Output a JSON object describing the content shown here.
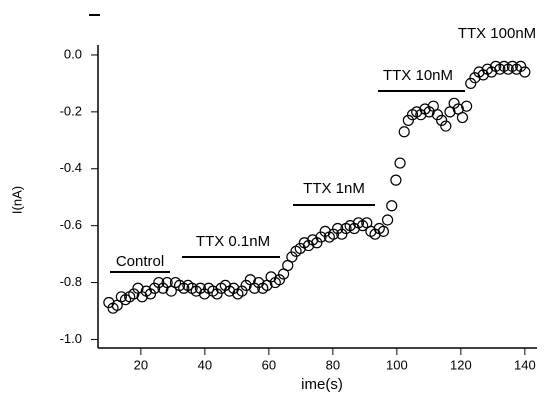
{
  "chart_data": {
    "type": "scatter",
    "xlabel": "ime(s)",
    "ylabel": "I(nA)",
    "annotations": [
      "Control",
      "TTX 0.1nM",
      "TTX 1nM",
      "TTX 10nM",
      "TTX 100nM"
    ],
    "color": "#000000",
    "xlim": [
      6.6,
      143.8
    ],
    "ylim": [
      -1.03,
      0.035
    ],
    "xticks": [
      20,
      40,
      60,
      80,
      100,
      120,
      140
    ],
    "yticks": [
      {
        "value": 0,
        "label": "0.0"
      },
      -0.2,
      -0.4,
      -0.6,
      -0.8,
      {
        "value": -1,
        "label": "-1.0"
      }
    ],
    "x": [
      10,
      11.3,
      12.6,
      13.9,
      15.2,
      16.5,
      17.8,
      19.1,
      20.4,
      21.7,
      23,
      24.3,
      25.6,
      26.9,
      28.2,
      29.5,
      30.8,
      32.1,
      33.4,
      34.7,
      36,
      37.3,
      38.6,
      39.9,
      41.2,
      42.5,
      43.8,
      45.1,
      46.4,
      47.7,
      49,
      50.3,
      51.6,
      52.9,
      54.2,
      55.5,
      56.8,
      58.1,
      59.4,
      60.7,
      62,
      63.3,
      64.6,
      65.9,
      67.2,
      68.5,
      69.8,
      71.1,
      72.4,
      73.7,
      75,
      76.3,
      77.6,
      78.9,
      80.2,
      81.5,
      82.8,
      84.1,
      85.4,
      86.7,
      88,
      89.3,
      90.6,
      91.9,
      93.2,
      94.5,
      95.8,
      97.1,
      98.4,
      99.7,
      101,
      102.3,
      103.6,
      104.9,
      106.2,
      107.5,
      108.8,
      110.1,
      111.4,
      112.7,
      114,
      115.3,
      116.6,
      117.9,
      119.2,
      120.5,
      121.8,
      123.1,
      124.4,
      125.7,
      127,
      128.3,
      129.6,
      130.9,
      132.2,
      133.5,
      134.8,
      136.1,
      137.4,
      138.7,
      140
    ],
    "values": [
      -0.87,
      -0.89,
      -0.88,
      -0.85,
      -0.86,
      -0.85,
      -0.84,
      -0.82,
      -0.85,
      -0.83,
      -0.84,
      -0.82,
      -0.8,
      -0.82,
      -0.8,
      -0.83,
      -0.8,
      -0.81,
      -0.82,
      -0.81,
      -0.82,
      -0.83,
      -0.82,
      -0.84,
      -0.82,
      -0.83,
      -0.84,
      -0.82,
      -0.81,
      -0.83,
      -0.82,
      -0.84,
      -0.83,
      -0.81,
      -0.79,
      -0.82,
      -0.8,
      -0.82,
      -0.81,
      -0.78,
      -0.8,
      -0.79,
      -0.77,
      -0.74,
      -0.71,
      -0.69,
      -0.68,
      -0.66,
      -0.67,
      -0.65,
      -0.66,
      -0.64,
      -0.62,
      -0.64,
      -0.63,
      -0.61,
      -0.63,
      -0.61,
      -0.6,
      -0.61,
      -0.59,
      -0.6,
      -0.59,
      -0.62,
      -0.63,
      -0.61,
      -0.62,
      -0.58,
      -0.53,
      -0.44,
      -0.38,
      -0.27,
      -0.23,
      -0.21,
      -0.2,
      -0.21,
      -0.19,
      -0.2,
      -0.18,
      -0.21,
      -0.23,
      -0.25,
      -0.2,
      -0.17,
      -0.19,
      -0.22,
      -0.18,
      -0.1,
      -0.08,
      -0.06,
      -0.07,
      -0.05,
      -0.06,
      -0.04,
      -0.05,
      -0.04,
      -0.05,
      -0.04,
      -0.05,
      -0.04,
      -0.06
    ]
  }
}
